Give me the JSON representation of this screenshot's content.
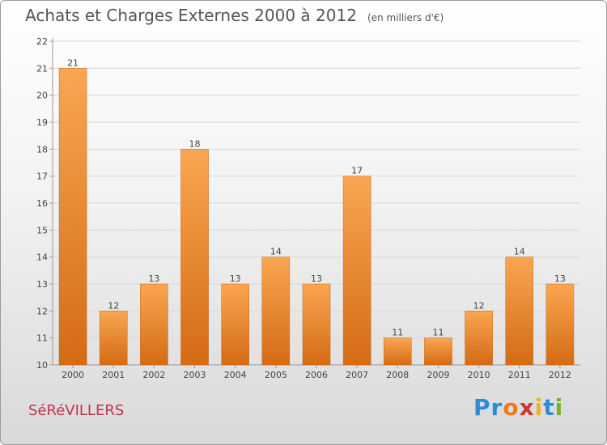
{
  "title": "Achats et Charges Externes 2000 à 2012",
  "unit": "(en milliers d'€)",
  "commune": "SéRéVILLERS",
  "logo": {
    "text": "Proxiti",
    "colors": [
      "#2e8bd6",
      "#2e8bd6",
      "#f07a1a",
      "#d0342c",
      "#f2b318",
      "#2e8bd6",
      "#7ab51d"
    ]
  },
  "bar_color": "#e8832a",
  "chart_data": {
    "type": "bar",
    "categories": [
      "2000",
      "2001",
      "2002",
      "2003",
      "2004",
      "2005",
      "2006",
      "2007",
      "2008",
      "2009",
      "2010",
      "2011",
      "2012"
    ],
    "values": [
      21,
      12,
      13,
      18,
      13,
      14,
      13,
      17,
      11,
      11,
      12,
      14,
      13
    ],
    "ylim": [
      10,
      22
    ],
    "yticks": [
      10,
      11,
      12,
      13,
      14,
      15,
      16,
      17,
      18,
      19,
      20,
      21,
      22
    ],
    "grid": true
  }
}
